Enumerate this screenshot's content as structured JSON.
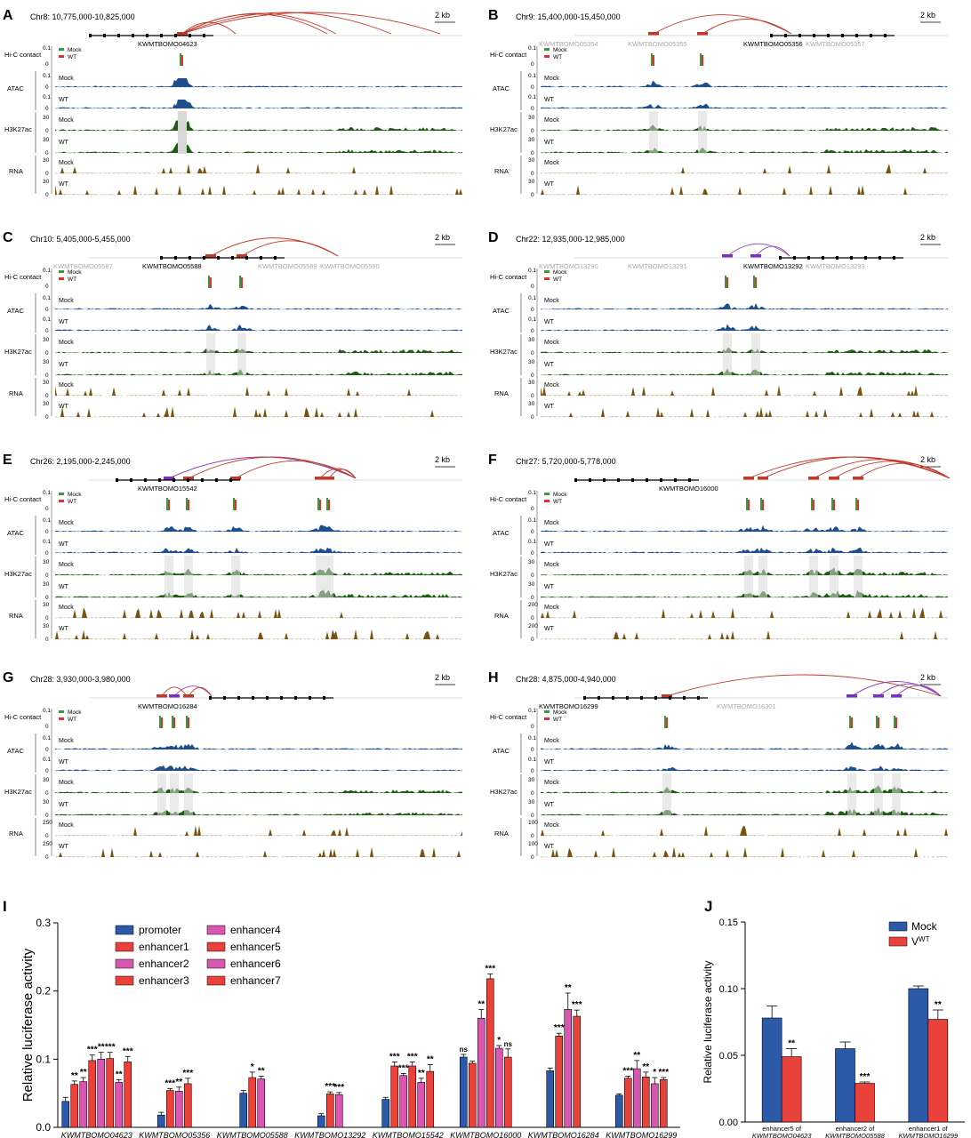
{
  "panels": [
    {
      "letter": "A",
      "region": "Chr8: 10,775,000-10,825,000",
      "genes": [
        {
          "name": "KWMTBOMO04623",
          "active": true
        }
      ],
      "rna_scale": "30",
      "arcs": [
        [
          205,
          265
        ],
        [
          205,
          368
        ],
        [
          205,
          440
        ],
        [
          205,
          495
        ],
        [
          205,
          378
        ]
      ]
    },
    {
      "letter": "B",
      "region": "Chr9: 15,400,000-15,450,000",
      "genes": [
        {
          "name": "KWMTBOMO05354",
          "active": false
        },
        {
          "name": "KWMTBOMO05355",
          "active": false
        },
        {
          "name": "KWMTBOMO05356",
          "active": true
        },
        {
          "name": "KWMTBOMO05357",
          "active": false
        }
      ],
      "rna_scale": "30",
      "arcs": [
        [
          735,
          890
        ],
        [
          790,
          890
        ]
      ]
    },
    {
      "letter": "C",
      "region": "Chr10: 5,405,000-5,455,000",
      "genes": [
        {
          "name": "KWMTBOMO05587",
          "active": false
        },
        {
          "name": "KWMTBOMO05588",
          "active": true
        },
        {
          "name": "KWMTBOMO05589",
          "active": false
        },
        {
          "name": "KWMTBOMO05590",
          "active": false
        }
      ],
      "rna_scale": "30",
      "arcs": [
        [
          237,
          380
        ],
        [
          272,
          380
        ]
      ]
    },
    {
      "letter": "D",
      "region": "Chr22: 12,935,000-12,985,000",
      "genes": [
        {
          "name": "KWMTBOMO13290",
          "active": false
        },
        {
          "name": "KWMTBOMO13291",
          "active": false
        },
        {
          "name": "KWMTBOMO13292",
          "active": true
        },
        {
          "name": "KWMTBOMO13293",
          "active": false
        }
      ],
      "rna_scale": "30",
      "arcs": [
        [
          818,
          888
        ],
        [
          850,
          888
        ]
      ]
    },
    {
      "letter": "E",
      "region": "Chr26: 2,195,000-2,245,000",
      "genes": [
        {
          "name": "KWMTBOMO15542",
          "active": true
        }
      ],
      "rna_scale": "30",
      "arcs": [
        [
          190,
          400
        ],
        [
          212,
          400
        ],
        [
          265,
          400
        ],
        [
          360,
          400
        ],
        [
          370,
          400
        ]
      ]
    },
    {
      "letter": "F",
      "region": "Chr27: 5,720,000-5,778,000",
      "genes": [
        {
          "name": "KWMTBOMO16000",
          "active": true
        }
      ],
      "rna_scale": "200",
      "arcs": [
        [
          842,
          1068
        ],
        [
          858,
          1068
        ],
        [
          915,
          1068
        ],
        [
          938,
          1068
        ],
        [
          965,
          1068
        ]
      ]
    },
    {
      "letter": "G",
      "region": "Chr28: 3,930,000-3,980,000",
      "genes": [
        {
          "name": "KWMTBOMO16284",
          "active": true
        }
      ],
      "rna_scale": "250",
      "arcs": [
        [
          182,
          210
        ],
        [
          196,
          238
        ],
        [
          212,
          238
        ]
      ]
    },
    {
      "letter": "H",
      "region": "Chr28: 4,875,000-4,940,000",
      "genes": [
        {
          "name": "KWMTBOMO16299",
          "active": true
        },
        {
          "name": "KWMTBOMO16301",
          "active": false
        }
      ],
      "rna_scale": "100",
      "arcs": [
        [
          750,
          1058
        ],
        [
          958,
          1058
        ],
        [
          988,
          1058
        ],
        [
          1008,
          1058
        ]
      ]
    }
  ],
  "labels": {
    "scale_bar": "2 kb",
    "hic": "Hi-C contact",
    "atac": "ATAC",
    "h3k27ac": "H3K27ac",
    "rna": "RNA",
    "mock": "Mock",
    "wt": "WT",
    "atac_scale": "0.1",
    "h3k_scale": "30",
    "hic_scale": "0.1",
    "zero": "0"
  },
  "colors": {
    "mock_green": "#3a9a3a",
    "wt_red": "#e03030",
    "atac": "#1f4e8c",
    "h3k27ac": "#1d5c12",
    "rna": "#7a5210",
    "arc_red": "#c0392b",
    "arc_purple": "#8e44ad",
    "enh_red": "#c0392b",
    "enh_purple": "#7b2fbe",
    "grey": "#d8d8d8"
  },
  "chart_data": [
    {
      "type": "bar",
      "panel": "I",
      "ylabel": "Relative luciferase activity",
      "ylim": [
        0,
        0.3
      ],
      "yticks": [
        "0.0",
        "0.1",
        "0.2",
        "0.3"
      ],
      "categories": [
        "KWMTBOMO04623",
        "KWMTBOMO05356",
        "KWMTBOMO05588",
        "KWMTBOMO13292",
        "KWMTBOMO15542",
        "KWMTBOMO16000",
        "KWMTBOMO16284",
        "KWMTBOMO16299"
      ],
      "legend": [
        {
          "name": "promoter",
          "color": "#2d5aa8"
        },
        {
          "name": "enhancer1",
          "color": "#e8423a"
        },
        {
          "name": "enhancer2",
          "color": "#d957b0"
        },
        {
          "name": "enhancer3",
          "color": "#e8423a"
        },
        {
          "name": "enhancer4",
          "color": "#d957b0"
        },
        {
          "name": "enhancer5",
          "color": "#e8423a"
        },
        {
          "name": "enhancer6",
          "color": "#d957b0"
        },
        {
          "name": "enhancer7",
          "color": "#e8423a"
        }
      ],
      "groups": [
        {
          "bars": [
            {
              "v": 0.038,
              "e": 0.006,
              "c": "#2d5aa8",
              "s": ""
            },
            {
              "v": 0.063,
              "e": 0.005,
              "c": "#e8423a",
              "s": "**"
            },
            {
              "v": 0.067,
              "e": 0.006,
              "c": "#d957b0",
              "s": "**"
            },
            {
              "v": 0.098,
              "e": 0.008,
              "c": "#e8423a",
              "s": "***"
            },
            {
              "v": 0.1,
              "e": 0.01,
              "c": "#d957b0",
              "s": "**"
            },
            {
              "v": 0.101,
              "e": 0.009,
              "c": "#e8423a",
              "s": "***"
            },
            {
              "v": 0.066,
              "e": 0.004,
              "c": "#d957b0",
              "s": "**"
            },
            {
              "v": 0.096,
              "e": 0.008,
              "c": "#e8423a",
              "s": "***"
            }
          ]
        },
        {
          "bars": [
            {
              "v": 0.018,
              "e": 0.004,
              "c": "#2d5aa8",
              "s": ""
            },
            {
              "v": 0.054,
              "e": 0.003,
              "c": "#e8423a",
              "s": "***"
            },
            {
              "v": 0.053,
              "e": 0.006,
              "c": "#d957b0",
              "s": "**"
            },
            {
              "v": 0.064,
              "e": 0.008,
              "c": "#e8423a",
              "s": "***"
            }
          ]
        },
        {
          "bars": [
            {
              "v": 0.05,
              "e": 0.004,
              "c": "#2d5aa8",
              "s": ""
            },
            {
              "v": 0.073,
              "e": 0.008,
              "c": "#e8423a",
              "s": "*"
            },
            {
              "v": 0.071,
              "e": 0.004,
              "c": "#d957b0",
              "s": "**"
            }
          ]
        },
        {
          "bars": [
            {
              "v": 0.017,
              "e": 0.003,
              "c": "#2d5aa8",
              "s": ""
            },
            {
              "v": 0.049,
              "e": 0.003,
              "c": "#e8423a",
              "s": "***"
            },
            {
              "v": 0.048,
              "e": 0.003,
              "c": "#d957b0",
              "s": "***"
            }
          ]
        },
        {
          "bars": [
            {
              "v": 0.041,
              "e": 0.003,
              "c": "#2d5aa8",
              "s": ""
            },
            {
              "v": 0.09,
              "e": 0.006,
              "c": "#e8423a",
              "s": "***"
            },
            {
              "v": 0.076,
              "e": 0.003,
              "c": "#d957b0",
              "s": "***"
            },
            {
              "v": 0.09,
              "e": 0.006,
              "c": "#e8423a",
              "s": "***"
            },
            {
              "v": 0.066,
              "e": 0.006,
              "c": "#d957b0",
              "s": "**"
            },
            {
              "v": 0.082,
              "e": 0.01,
              "c": "#e8423a",
              "s": "**"
            }
          ]
        },
        {
          "bars": [
            {
              "v": 0.103,
              "e": 0.004,
              "c": "#2d5aa8",
              "s": "ns"
            },
            {
              "v": 0.094,
              "e": 0.003,
              "c": "#e8423a",
              "s": ""
            },
            {
              "v": 0.16,
              "e": 0.013,
              "c": "#d957b0",
              "s": "**"
            },
            {
              "v": 0.218,
              "e": 0.007,
              "c": "#e8423a",
              "s": "***"
            },
            {
              "v": 0.116,
              "e": 0.004,
              "c": "#d957b0",
              "s": "*"
            },
            {
              "v": 0.103,
              "e": 0.012,
              "c": "#e8423a",
              "s": "ns"
            }
          ]
        },
        {
          "bars": [
            {
              "v": 0.083,
              "e": 0.004,
              "c": "#2d5aa8",
              "s": ""
            },
            {
              "v": 0.134,
              "e": 0.004,
              "c": "#e8423a",
              "s": "***"
            },
            {
              "v": 0.173,
              "e": 0.024,
              "c": "#d957b0",
              "s": "**"
            },
            {
              "v": 0.163,
              "e": 0.009,
              "c": "#e8423a",
              "s": "***"
            }
          ]
        },
        {
          "bars": [
            {
              "v": 0.047,
              "e": 0.002,
              "c": "#2d5aa8",
              "s": ""
            },
            {
              "v": 0.072,
              "e": 0.003,
              "c": "#e8423a",
              "s": "***"
            },
            {
              "v": 0.086,
              "e": 0.012,
              "c": "#d957b0",
              "s": "**"
            },
            {
              "v": 0.074,
              "e": 0.007,
              "c": "#e8423a",
              "s": "**"
            },
            {
              "v": 0.064,
              "e": 0.009,
              "c": "#d957b0",
              "s": "*"
            },
            {
              "v": 0.07,
              "e": 0.003,
              "c": "#e8423a",
              "s": "***"
            }
          ]
        }
      ]
    },
    {
      "type": "bar",
      "panel": "J",
      "ylabel": "Relative luciferase activity",
      "ylim": [
        0,
        0.15
      ],
      "yticks": [
        "0.00",
        "0.05",
        "0.10",
        "0.15"
      ],
      "legend": [
        {
          "name": "Mock",
          "sup": "",
          "color": "#2d5aa8"
        },
        {
          "name": "V",
          "sup": "WT",
          "color": "#e8423a"
        }
      ],
      "categories": [
        {
          "line1": "enhancer5 of",
          "line2": "KWMTBOMO04623"
        },
        {
          "line1": "enhancer2 of",
          "line2": "KWMTBOMO05588"
        },
        {
          "line1": "enhancer1 of",
          "line2": "KWMTBOMO16299"
        }
      ],
      "series": [
        {
          "name": "Mock",
          "values": [
            0.078,
            0.055,
            0.1
          ],
          "err": [
            0.009,
            0.005,
            0.002
          ]
        },
        {
          "name": "VWT",
          "values": [
            0.049,
            0.029,
            0.077
          ],
          "err": [
            0.006,
            0.001,
            0.007
          ]
        }
      ],
      "sig": [
        "**",
        "***",
        "**"
      ]
    }
  ]
}
